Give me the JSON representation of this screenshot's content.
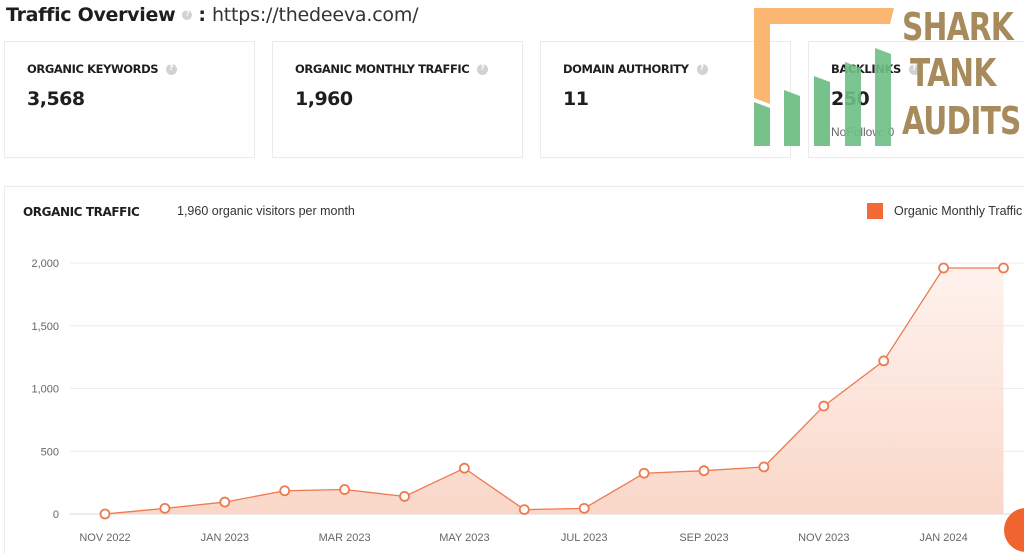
{
  "header": {
    "title": "Traffic Overview",
    "separator": ":",
    "url": "https://thedeeva.com/"
  },
  "cards": [
    {
      "label": "ORGANIC KEYWORDS",
      "value": "3,568"
    },
    {
      "label": "ORGANIC MONTHLY TRAFFIC",
      "value": "1,960"
    },
    {
      "label": "DOMAIN AUTHORITY",
      "value": "11"
    },
    {
      "label": "BACKLINKS",
      "value": "250",
      "sub": "NoFollow: 0"
    }
  ],
  "chart_panel": {
    "title": "ORGANIC TRAFFIC",
    "subtitle": "1,960 organic visitors per month",
    "legend": "Organic Monthly Traffic"
  },
  "watermark": {
    "lines": [
      "SHARK",
      "TANK",
      "AUDITS"
    ]
  },
  "colors": {
    "accent": "#f26a35",
    "line": "#ee7a4f",
    "fill": "#fbd9cc",
    "grid": "#ececec",
    "watermark_text": "#a88b5c",
    "watermark_orange": "#fbb36a",
    "watermark_green": "#6fbf84"
  },
  "chart_data": {
    "type": "line",
    "title": "ORGANIC TRAFFIC",
    "subtitle": "1,960 organic visitors per month",
    "xlabel": "",
    "ylabel": "",
    "categories": [
      "NOV 2022",
      "DEC 2022",
      "JAN 2023",
      "FEB 2023",
      "MAR 2023",
      "APR 2023",
      "MAY 2023",
      "JUN 2023",
      "JUL 2023",
      "AUG 2023",
      "SEP 2023",
      "OCT 2023",
      "NOV 2023",
      "DEC 2023",
      "JAN 2024",
      "FEB 2024"
    ],
    "x_tick_labels": [
      "NOV 2022",
      "JAN 2023",
      "MAR 2023",
      "MAY 2023",
      "JUL 2023",
      "SEP 2023",
      "NOV 2023",
      "JAN 2024"
    ],
    "series": [
      {
        "name": "Organic Monthly Traffic",
        "values": [
          0,
          45,
          95,
          185,
          195,
          140,
          365,
          35,
          45,
          325,
          345,
          375,
          860,
          1220,
          1960,
          1960
        ]
      }
    ],
    "y_ticks": [
      0,
      500,
      1000,
      1500,
      2000
    ],
    "y_tick_labels": [
      "0",
      "500",
      "1,000",
      "1,500",
      "2,000"
    ],
    "ylim": [
      0,
      2000
    ],
    "grid": true,
    "legend_position": "top-right",
    "area_fill": true
  }
}
